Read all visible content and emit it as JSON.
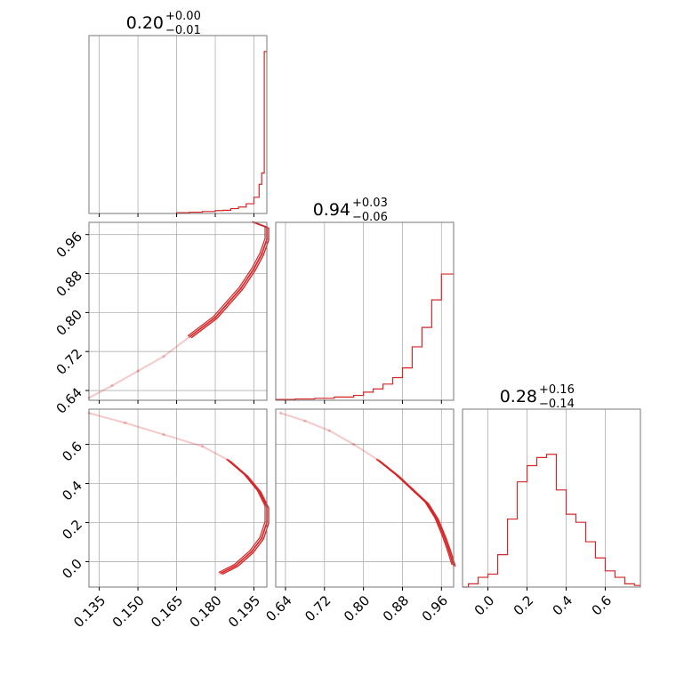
{
  "chart_data": {
    "type": "corner",
    "color": "#d62728",
    "grid": true,
    "parameters": [
      {
        "title": {
          "median": "0.20",
          "plus": "+0.00",
          "minus": "−0.01"
        },
        "range": [
          0.131,
          0.2
        ]
      },
      {
        "title": {
          "median": "0.94",
          "plus": "+0.03",
          "minus": "−0.06"
        },
        "range": [
          0.62,
          0.985
        ]
      },
      {
        "title": {
          "median": "0.28",
          "plus": "+0.16",
          "minus": "−0.14"
        },
        "range": [
          -0.13,
          0.78
        ]
      }
    ],
    "x_ticks": [
      {
        "values": [
          0.135,
          0.15,
          0.165,
          0.18,
          0.195
        ],
        "labels": [
          "0.135",
          "0.150",
          "0.165",
          "0.180",
          "0.195"
        ]
      },
      {
        "values": [
          0.64,
          0.72,
          0.8,
          0.88,
          0.96
        ],
        "labels": [
          "0.64",
          "0.72",
          "0.80",
          "0.88",
          "0.96"
        ]
      },
      {
        "values": [
          0.0,
          0.2,
          0.4,
          0.6
        ],
        "labels": [
          "0.0",
          "0.2",
          "0.4",
          "0.6"
        ]
      }
    ],
    "y_ticks": [
      {
        "param": 1,
        "values": [
          0.64,
          0.72,
          0.8,
          0.88,
          0.96
        ],
        "labels": [
          "0.64",
          "0.72",
          "0.80",
          "0.88",
          "0.96"
        ]
      },
      {
        "param": 2,
        "values": [
          0.0,
          0.2,
          0.4,
          0.6
        ],
        "labels": [
          "0.0",
          "0.2",
          "0.4",
          "0.6"
        ]
      }
    ],
    "histograms": [
      {
        "param": 0,
        "x": [
          0.165,
          0.17,
          0.175,
          0.18,
          0.183,
          0.186,
          0.189,
          0.192,
          0.195,
          0.197,
          0.198,
          0.199,
          0.2
        ],
        "density": [
          0.005,
          0.008,
          0.012,
          0.018,
          0.02,
          0.03,
          0.04,
          0.06,
          0.1,
          0.18,
          0.25,
          1.0,
          1.0
        ]
      },
      {
        "param": 1,
        "x": [
          0.62,
          0.66,
          0.7,
          0.74,
          0.78,
          0.8,
          0.82,
          0.84,
          0.86,
          0.88,
          0.9,
          0.92,
          0.94,
          0.96,
          0.985
        ],
        "density": [
          0.005,
          0.008,
          0.012,
          0.02,
          0.03,
          0.05,
          0.07,
          0.1,
          0.14,
          0.2,
          0.33,
          0.45,
          0.62,
          0.78,
          0.82
        ]
      },
      {
        "param": 2,
        "x": [
          -0.13,
          -0.1,
          -0.05,
          0.0,
          0.05,
          0.1,
          0.15,
          0.2,
          0.25,
          0.3,
          0.35,
          0.4,
          0.45,
          0.5,
          0.55,
          0.6,
          0.65,
          0.7,
          0.75,
          0.78
        ],
        "density": [
          0.0,
          0.02,
          0.06,
          0.08,
          0.2,
          0.42,
          0.65,
          0.75,
          0.8,
          0.82,
          0.6,
          0.45,
          0.4,
          0.28,
          0.18,
          0.1,
          0.06,
          0.02,
          0.01,
          0.0
        ]
      }
    ],
    "joint": [
      {
        "x_param": 0,
        "y_param": 1,
        "samples": [
          [
            0.131,
            0.625
          ],
          [
            0.14,
            0.65
          ],
          [
            0.15,
            0.68
          ],
          [
            0.16,
            0.71
          ],
          [
            0.17,
            0.75
          ],
          [
            0.18,
            0.79
          ],
          [
            0.185,
            0.82
          ],
          [
            0.19,
            0.85
          ],
          [
            0.195,
            0.89
          ],
          [
            0.198,
            0.92
          ],
          [
            0.2,
            0.95
          ],
          [
            0.2,
            0.975
          ],
          [
            0.195,
            0.985
          ]
        ]
      },
      {
        "x_param": 0,
        "y_param": 2,
        "samples": [
          [
            0.131,
            0.76
          ],
          [
            0.145,
            0.71
          ],
          [
            0.16,
            0.65
          ],
          [
            0.175,
            0.59
          ],
          [
            0.185,
            0.52
          ],
          [
            0.192,
            0.44
          ],
          [
            0.197,
            0.36
          ],
          [
            0.2,
            0.28
          ],
          [
            0.2,
            0.2
          ],
          [
            0.198,
            0.12
          ],
          [
            0.194,
            0.05
          ],
          [
            0.188,
            -0.02
          ],
          [
            0.182,
            -0.06
          ]
        ]
      },
      {
        "x_param": 1,
        "y_param": 2,
        "samples": [
          [
            0.63,
            0.76
          ],
          [
            0.68,
            0.72
          ],
          [
            0.73,
            0.67
          ],
          [
            0.78,
            0.6
          ],
          [
            0.83,
            0.52
          ],
          [
            0.87,
            0.44
          ],
          [
            0.9,
            0.37
          ],
          [
            0.93,
            0.3
          ],
          [
            0.95,
            0.22
          ],
          [
            0.965,
            0.13
          ],
          [
            0.975,
            0.06
          ],
          [
            0.985,
            -0.02
          ]
        ]
      }
    ]
  }
}
